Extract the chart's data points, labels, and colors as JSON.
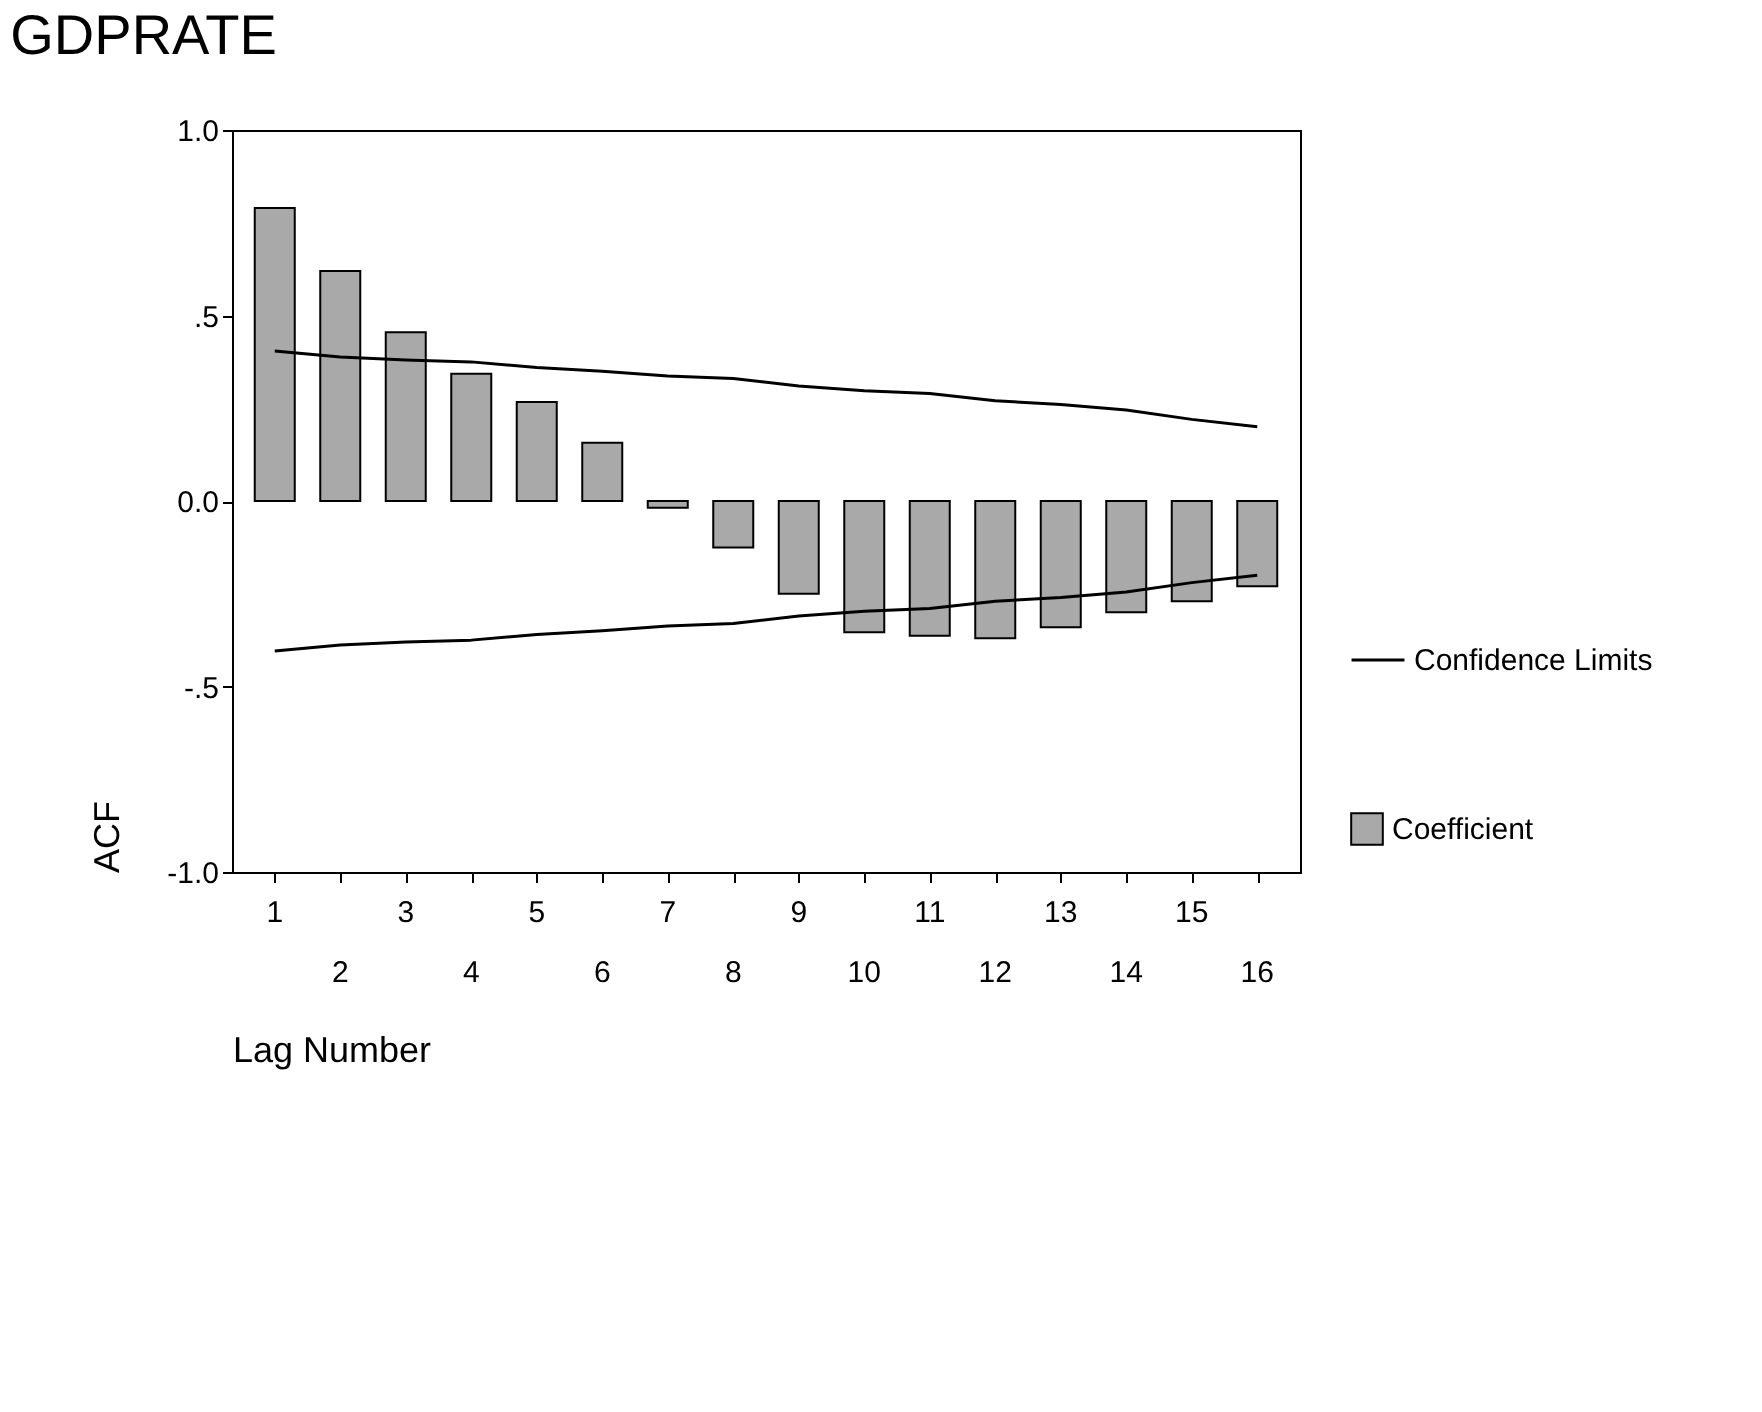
{
  "chart_data": {
    "type": "bar",
    "title": "GDPRATE",
    "xlabel": "Lag Number",
    "ylabel": "ACF",
    "categories": [
      "1",
      "2",
      "3",
      "4",
      "5",
      "6",
      "7",
      "8",
      "9",
      "10",
      "11",
      "12",
      "13",
      "14",
      "15",
      "16"
    ],
    "series": [
      {
        "name": "Coefficient",
        "color": "#a9a9a9",
        "values": [
          0.79,
          0.62,
          0.455,
          0.343,
          0.267,
          0.157,
          -0.018,
          -0.125,
          -0.25,
          -0.354,
          -0.363,
          -0.37,
          -0.34,
          -0.3,
          -0.27,
          -0.23
        ]
      },
      {
        "name": "Confidence Limits",
        "type": "line",
        "color": "#000000",
        "values": [
          0.404,
          0.388,
          0.38,
          0.375,
          0.36,
          0.35,
          0.337,
          0.33,
          0.31,
          0.297,
          0.29,
          0.27,
          0.26,
          0.245,
          0.22,
          0.2
        ]
      },
      {
        "type": "line",
        "color": "#000000",
        "values": [
          -0.404,
          -0.388,
          -0.38,
          -0.375,
          -0.36,
          -0.35,
          -0.337,
          -0.33,
          -0.31,
          -0.297,
          -0.29,
          -0.27,
          -0.26,
          -0.245,
          -0.22,
          -0.2
        ]
      }
    ],
    "ylim": [
      -1.0,
      1.0
    ],
    "yticks": [
      {
        "value": -1.0,
        "label": "-1.0"
      },
      {
        "value": -0.5,
        "label": "-.5"
      },
      {
        "value": 0.0,
        "label": "0.0"
      },
      {
        "value": 0.5,
        "label": ".5"
      },
      {
        "value": 1.0,
        "label": "1.0"
      }
    ],
    "grid": false,
    "legend": "right",
    "line_style": "solid",
    "marker": "none"
  }
}
